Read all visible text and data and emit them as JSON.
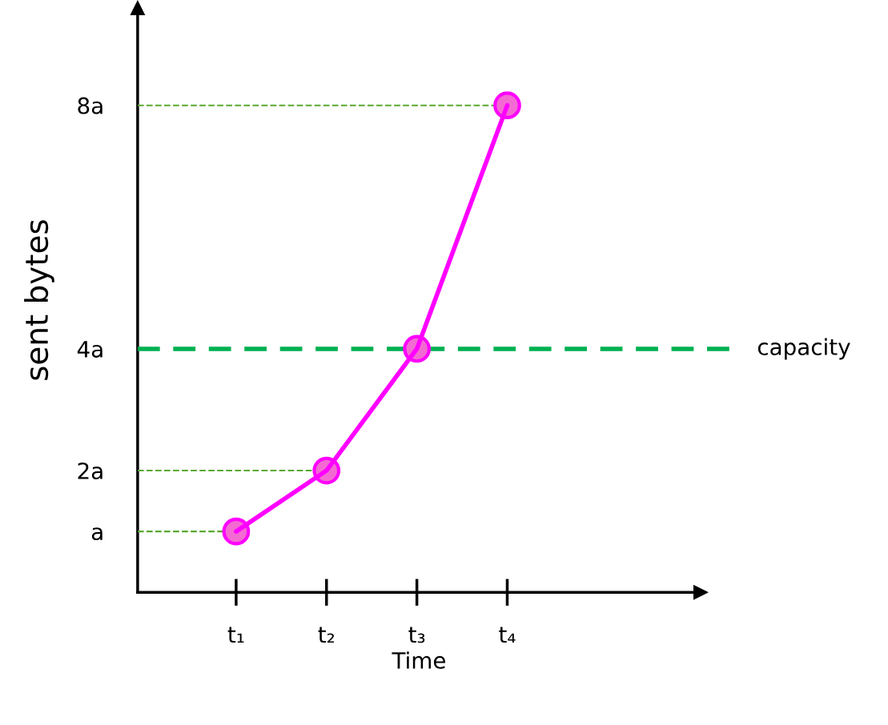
{
  "chart_data": {
    "type": "line",
    "xlabel": "Time",
    "ylabel": "sent bytes",
    "categories": [
      "t₁",
      "t₂",
      "t₃",
      "t₄"
    ],
    "series": [
      {
        "color": "#ff00ff",
        "values": [
          1,
          2,
          4,
          8
        ]
      }
    ],
    "marker": "circle",
    "line_style": "solid",
    "grid": false,
    "ylim": [
      0,
      9.6
    ],
    "yticks": [
      {
        "value": 1,
        "label": "a"
      },
      {
        "value": 2,
        "label": "2a"
      },
      {
        "value": 4,
        "label": "4a"
      },
      {
        "value": 8,
        "label": "8a"
      }
    ],
    "ref_lines": [
      {
        "axis": "y",
        "value": 1,
        "color": "#5aa832",
        "line_style": "dashed"
      },
      {
        "axis": "y",
        "value": 2,
        "color": "#5aa832",
        "line_style": "dashed"
      },
      {
        "axis": "y",
        "value": 8,
        "color": "#5aa832",
        "line_style": "dashed"
      },
      {
        "axis": "y",
        "value": 4,
        "label": "capacity",
        "color": "#00b050",
        "line_style": "dashed"
      }
    ]
  }
}
